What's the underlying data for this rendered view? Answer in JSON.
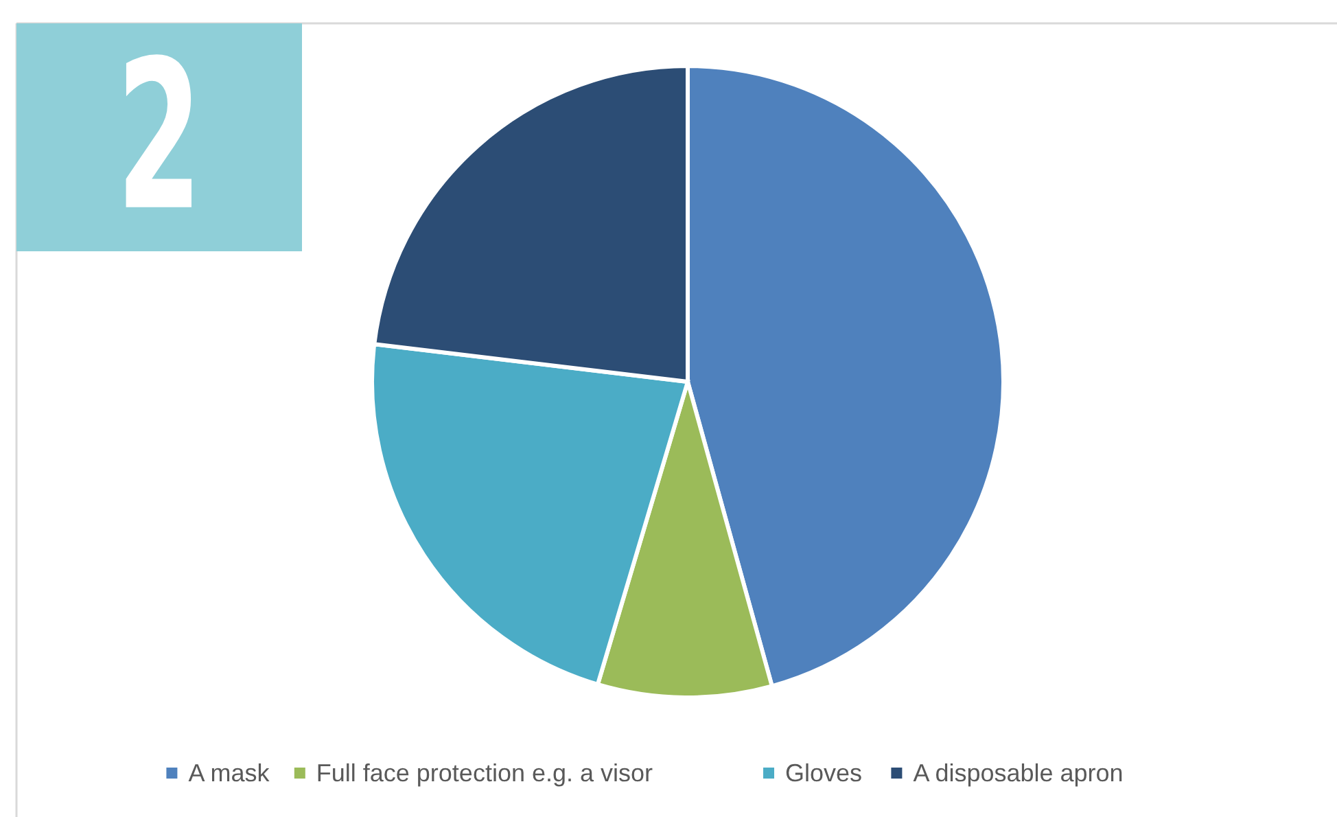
{
  "chart_data": {
    "type": "pie",
    "categories": [
      "A mask",
      "Full face protection e.g. a visor",
      "Gloves",
      "A disposable apron"
    ],
    "values": [
      45.7,
      8.9,
      22.3,
      23.1
    ],
    "colors": [
      "#4f81bd",
      "#9bbb59",
      "#4bacc6",
      "#2c4d75"
    ],
    "legend": "bottom",
    "annotations": [
      "2"
    ]
  }
}
